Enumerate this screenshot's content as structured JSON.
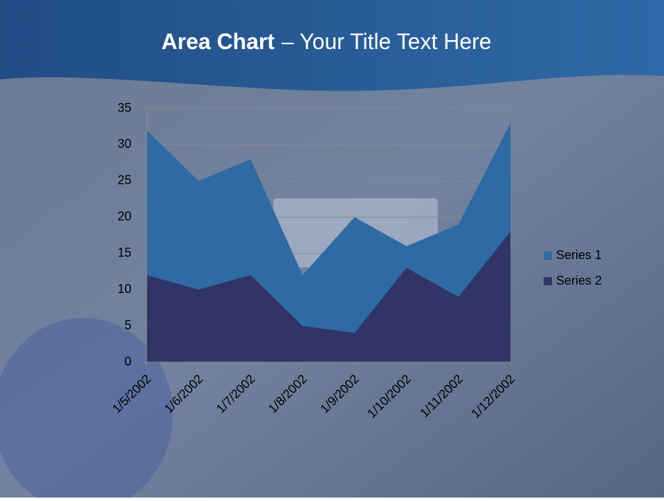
{
  "chart_data": {
    "type": "area",
    "title_lead": "Area Chart",
    "title_rest": "– Your Title Text Here",
    "categories": [
      "1/5/2002",
      "1/6/2002",
      "1/7/2002",
      "1/8/2002",
      "1/9/2002",
      "1/10/2002",
      "1/11/2002",
      "1/12/2002"
    ],
    "series": [
      {
        "name": "Series 1",
        "color": "#2e6aa3",
        "values": [
          32,
          25,
          28,
          12,
          20,
          16,
          19,
          33
        ]
      },
      {
        "name": "Series 2",
        "color": "#313466",
        "values": [
          12,
          10,
          12,
          5,
          4,
          13,
          9,
          18
        ]
      }
    ],
    "ylim": [
      0,
      35
    ],
    "yticks": [
      0,
      5,
      10,
      15,
      20,
      25,
      30,
      35
    ],
    "grid": true,
    "legend": "right"
  }
}
